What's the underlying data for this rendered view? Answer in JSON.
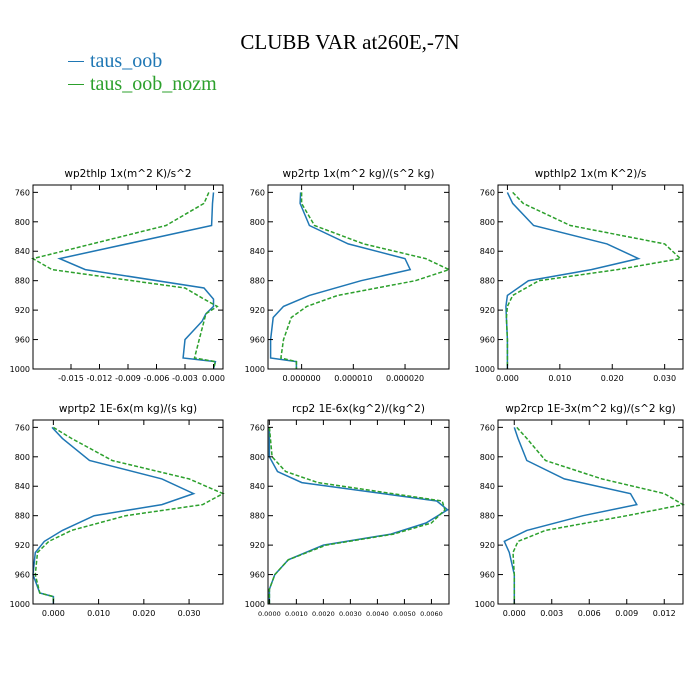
{
  "title": "CLUBB VAR at260E,-7N",
  "legend": [
    {
      "label": "taus_oob",
      "color": "#1f77b4"
    },
    {
      "label": "taus_oob_nozm",
      "color": "#2ca02c"
    }
  ],
  "chart_data": [
    {
      "type": "line",
      "title": "wp2thlp  1x(m^2 K)/s^2",
      "xlim": [
        -0.019,
        0.001
      ],
      "xticks": [
        -0.015,
        -0.012,
        -0.009,
        -0.006,
        -0.003,
        0.0
      ],
      "xticklabels": [
        "-0.015",
        "-0.012",
        "-0.009",
        "-0.006",
        "-0.003",
        "0.000"
      ],
      "ylim": [
        1000,
        750
      ],
      "yticks": [
        760,
        800,
        840,
        880,
        920,
        960,
        1000
      ],
      "y": [
        760,
        775,
        805,
        850,
        865,
        890,
        905,
        915,
        925,
        935,
        960,
        985,
        990,
        1000
      ],
      "series": [
        {
          "name": "taus_oob",
          "color": "#1f77b4",
          "dash": "none",
          "values": [
            0.0,
            -0.0001,
            -0.0002,
            -0.0162,
            -0.0135,
            -0.001,
            0.0,
            0.0,
            -0.0008,
            -0.0012,
            -0.003,
            -0.0032,
            0.0002,
            0.0
          ]
        },
        {
          "name": "taus_oob_nozm",
          "color": "#2ca02c",
          "dash": "4,2",
          "values": [
            -0.0005,
            -0.001,
            -0.005,
            -0.019,
            -0.017,
            -0.003,
            -0.001,
            0.0004,
            -0.0008,
            -0.001,
            -0.0015,
            -0.002,
            0.0002,
            0.0
          ]
        }
      ]
    },
    {
      "type": "line",
      "title": "wp2rtp  1x(m^2 kg)/(s^2 kg)",
      "xlim": [
        -6.5e-06,
        2.85e-05
      ],
      "xticks": [
        0.0,
        1e-05,
        2e-05
      ],
      "xticklabels": [
        "0.000000",
        "0.000010",
        "0.000020"
      ],
      "ylim": [
        1000,
        750
      ],
      "yticks": [
        760,
        800,
        840,
        880,
        920,
        960,
        1000
      ],
      "y": [
        760,
        775,
        805,
        830,
        850,
        865,
        880,
        900,
        915,
        930,
        960,
        985,
        990,
        1000
      ],
      "series": [
        {
          "name": "taus_oob",
          "color": "#1f77b4",
          "dash": "none",
          "values": [
            -2e-07,
            -3e-07,
            1.5e-06,
            9e-06,
            2e-05,
            2.1e-05,
            1.15e-05,
            1.5e-06,
            -3.5e-06,
            -5.5e-06,
            -6e-06,
            -6e-06,
            -1e-06,
            -1e-06
          ]
        },
        {
          "name": "taus_oob_nozm",
          "color": "#2ca02c",
          "dash": "4,2",
          "values": [
            0.0,
            0.0,
            2.5e-06,
            1.2e-05,
            2.4e-05,
            2.85e-05,
            2.2e-05,
            7e-06,
            1e-06,
            -2e-06,
            -3.5e-06,
            -4e-06,
            -1e-06,
            -1e-06
          ]
        }
      ]
    },
    {
      "type": "line",
      "title": "wpthlp2  1x(m K^2)/s",
      "xlim": [
        -0.0018,
        0.0335
      ],
      "xticks": [
        0.0,
        0.01,
        0.02,
        0.03
      ],
      "xticklabels": [
        "0.000",
        "0.010",
        "0.020",
        "0.030"
      ],
      "ylim": [
        1000,
        750
      ],
      "yticks": [
        760,
        800,
        840,
        880,
        920,
        960,
        1000
      ],
      "y": [
        760,
        775,
        805,
        830,
        850,
        865,
        880,
        900,
        915,
        930,
        960,
        985,
        990,
        1000
      ],
      "series": [
        {
          "name": "taus_oob",
          "color": "#1f77b4",
          "dash": "none",
          "values": [
            0.0,
            0.001,
            0.005,
            0.019,
            0.025,
            0.016,
            0.004,
            0.0,
            -0.0003,
            -0.0002,
            0.0,
            0.0,
            0.0,
            0.0
          ]
        },
        {
          "name": "taus_oob_nozm",
          "color": "#2ca02c",
          "dash": "4,2",
          "values": [
            0.001,
            0.003,
            0.012,
            0.03,
            0.033,
            0.021,
            0.006,
            0.001,
            0.0,
            -0.0002,
            0.0,
            0.0,
            0.0,
            0.0
          ]
        }
      ]
    },
    {
      "type": "line",
      "title": "wprtp2  1E-6x(m kg)/(s kg)",
      "xlim": [
        -0.0045,
        0.0375
      ],
      "xticks": [
        0.0,
        0.01,
        0.02,
        0.03
      ],
      "xticklabels": [
        "0.000",
        "0.010",
        "0.020",
        "0.030"
      ],
      "ylim": [
        1000,
        750
      ],
      "yticks": [
        760,
        800,
        840,
        880,
        920,
        960,
        1000
      ],
      "y": [
        760,
        775,
        805,
        830,
        850,
        865,
        880,
        900,
        915,
        930,
        960,
        985,
        990,
        1000
      ],
      "series": [
        {
          "name": "taus_oob",
          "color": "#1f77b4",
          "dash": "none",
          "values": [
            -0.0003,
            0.002,
            0.008,
            0.024,
            0.031,
            0.024,
            0.009,
            0.002,
            -0.002,
            -0.004,
            -0.0045,
            -0.003,
            0.0,
            0.0
          ]
        },
        {
          "name": "taus_oob_nozm",
          "color": "#2ca02c",
          "dash": "4,2",
          "values": [
            0.0,
            0.004,
            0.013,
            0.03,
            0.0375,
            0.033,
            0.016,
            0.004,
            -0.001,
            -0.0035,
            -0.004,
            -0.003,
            0.0,
            0.0
          ]
        }
      ]
    },
    {
      "type": "line",
      "title": "rcp2  1E-6x(kg^2)/(kg^2)",
      "xlim": [
        -5e-05,
        0.00665
      ],
      "xticks": [
        0.0,
        0.001,
        0.002,
        0.003,
        0.004,
        0.005,
        0.006
      ],
      "xticklabels": [
        "0.0000",
        "0.0010",
        "0.0020",
        "0.0030",
        "0.0040",
        "0.0050",
        "0.0060"
      ],
      "ylim": [
        1000,
        750
      ],
      "yticks": [
        760,
        800,
        840,
        880,
        920,
        960,
        1000
      ],
      "y": [
        760,
        800,
        820,
        835,
        860,
        872,
        890,
        905,
        920,
        940,
        960,
        980,
        1000
      ],
      "series": [
        {
          "name": "taus_oob",
          "color": "#1f77b4",
          "dash": "none",
          "values": [
            0.0,
            0.0,
            0.0003,
            0.0012,
            0.0062,
            0.0066,
            0.0058,
            0.0045,
            0.002,
            0.0007,
            0.0002,
            0.0,
            0.0
          ]
        },
        {
          "name": "taus_oob_nozm",
          "color": "#2ca02c",
          "dash": "4,2",
          "values": [
            0.0,
            0.0001,
            0.0006,
            0.0018,
            0.0064,
            0.0065,
            0.006,
            0.0046,
            0.0021,
            0.0007,
            0.0002,
            0.0,
            0.0
          ]
        }
      ]
    },
    {
      "type": "line",
      "title": "wp2rcp  1E-3x(m^2 kg)/(s^2 kg)",
      "xlim": [
        -0.0013,
        0.0135
      ],
      "xticks": [
        0.0,
        0.003,
        0.006,
        0.009,
        0.012
      ],
      "xticklabels": [
        "0.000",
        "0.003",
        "0.006",
        "0.009",
        "0.012"
      ],
      "ylim": [
        1000,
        750
      ],
      "yticks": [
        760,
        800,
        840,
        880,
        920,
        960,
        1000
      ],
      "y": [
        760,
        775,
        805,
        830,
        850,
        865,
        880,
        900,
        915,
        930,
        960,
        985,
        990,
        1000
      ],
      "series": [
        {
          "name": "taus_oob",
          "color": "#1f77b4",
          "dash": "none",
          "values": [
            0.0,
            0.0003,
            0.001,
            0.004,
            0.0093,
            0.0098,
            0.0055,
            0.001,
            -0.0008,
            -0.0004,
            0.0,
            0.0,
            0.0,
            0.0
          ]
        },
        {
          "name": "taus_oob_nozm",
          "color": "#2ca02c",
          "dash": "4,2",
          "values": [
            0.0002,
            0.001,
            0.0025,
            0.007,
            0.012,
            0.0135,
            0.009,
            0.0025,
            0.0003,
            -0.0001,
            0.0,
            0.0,
            0.0,
            0.0
          ]
        }
      ]
    }
  ]
}
